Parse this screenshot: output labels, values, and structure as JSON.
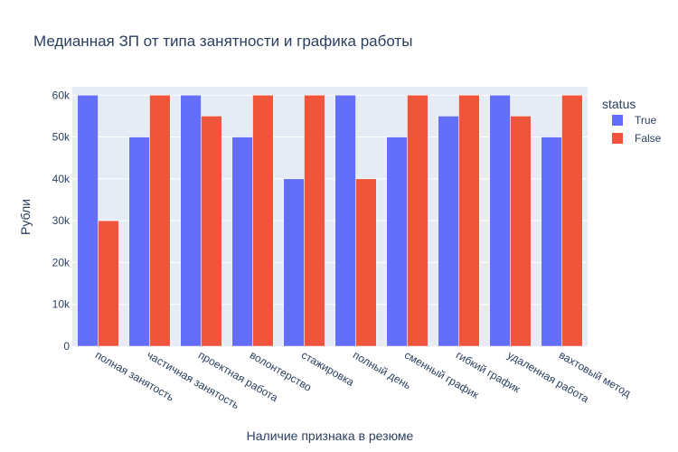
{
  "chart_data": {
    "type": "bar",
    "title": "Медианная ЗП от типа занятности и графика работы",
    "xlabel": "Наличие признака в резюме",
    "ylabel": "Рубли",
    "ylim": [
      0,
      62000
    ],
    "yticks": [
      0,
      10000,
      20000,
      30000,
      40000,
      50000,
      60000
    ],
    "ytick_labels": [
      "0",
      "10k",
      "20k",
      "30k",
      "40k",
      "50k",
      "60k"
    ],
    "categories": [
      "полная занятость",
      "частичная занятость",
      "проектная работа",
      "волонтерство",
      "стажировка",
      "полный день",
      "сменный график",
      "гибкий график",
      "удаленная работа",
      "вахтовый метод"
    ],
    "legend_title": "status",
    "legend_position": "top-right",
    "series": [
      {
        "name": "True",
        "color": "#636efa",
        "values": [
          60000,
          50000,
          60000,
          50000,
          40000,
          60000,
          50000,
          55000,
          60000,
          50000
        ]
      },
      {
        "name": "False",
        "color": "#ef553b",
        "values": [
          30000,
          60000,
          55000,
          60000,
          60000,
          40000,
          60000,
          60000,
          55000,
          60000
        ]
      }
    ]
  }
}
